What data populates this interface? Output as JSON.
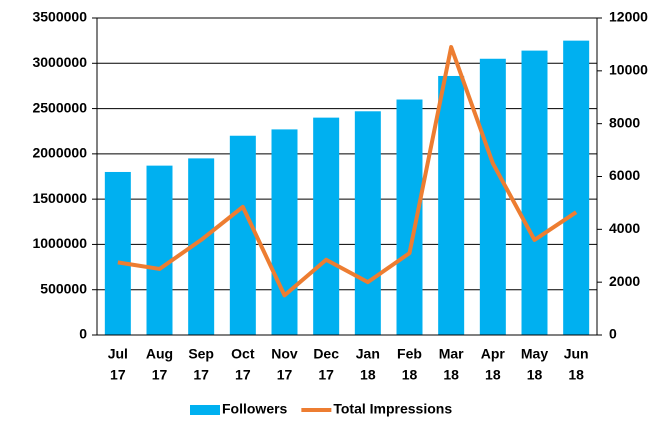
{
  "chart_data": {
    "type": "bar_line",
    "categories": [
      [
        "Jul",
        "17"
      ],
      [
        "Aug",
        "17"
      ],
      [
        "Sep",
        "17"
      ],
      [
        "Oct",
        "17"
      ],
      [
        "Nov",
        "17"
      ],
      [
        "Dec",
        "17"
      ],
      [
        "Jan",
        "18"
      ],
      [
        "Feb",
        "18"
      ],
      [
        "Mar",
        "18"
      ],
      [
        "Apr",
        "18"
      ],
      [
        "May",
        "18"
      ],
      [
        "Jun",
        "18"
      ]
    ],
    "series": [
      {
        "name": "Followers",
        "color": "#00b0f0",
        "type": "bar",
        "values": [
          1800000,
          1870000,
          1950000,
          2200000,
          2270000,
          2400000,
          2470000,
          2600000,
          2860000,
          3050000,
          3140000,
          3250000
        ]
      },
      {
        "name": "Total Impressions",
        "color": "#ed7d31",
        "type": "line",
        "axis": "y2",
        "values": [
          2750,
          2500,
          3600,
          4850,
          1500,
          2850,
          2000,
          3100,
          10900,
          6500,
          3600,
          4650
        ]
      }
    ],
    "ylim": [
      0,
      3500000
    ],
    "yticks": [
      0,
      500000,
      1000000,
      1500000,
      2000000,
      2500000,
      3000000,
      3500000
    ],
    "y2lim": [
      0,
      12000
    ],
    "y2ticks": [
      0,
      2000,
      4000,
      6000,
      8000,
      10000,
      12000
    ],
    "grid": true,
    "legend": "bottom"
  }
}
